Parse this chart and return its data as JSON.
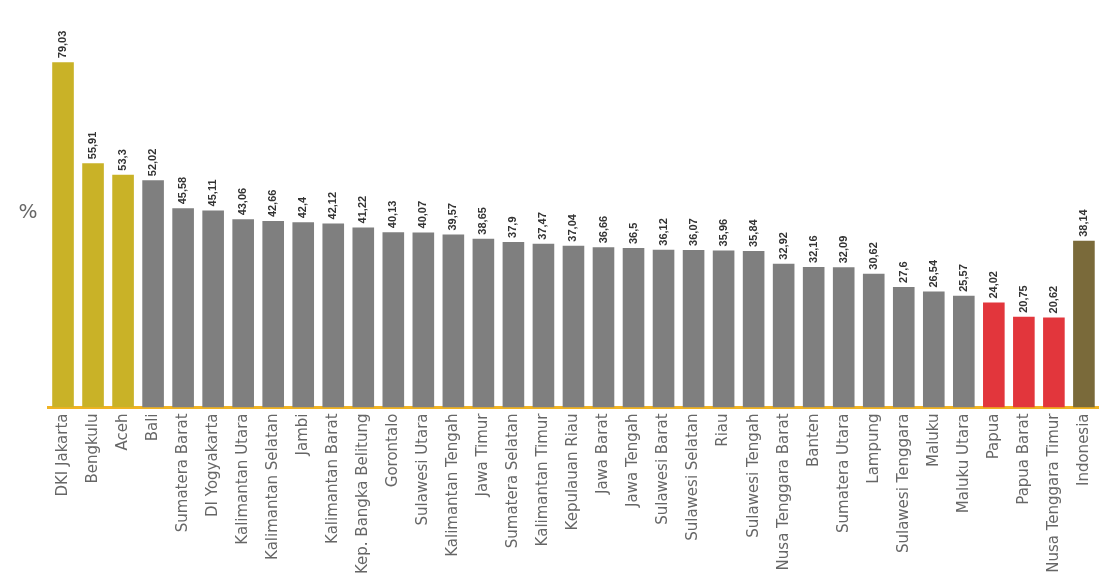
{
  "chart_data": {
    "type": "bar",
    "ylabel": "%",
    "categories": [
      "DKI Jakarta",
      "Bengkulu",
      "Aceh",
      "Bali",
      "Sumatera Barat",
      "DI Yogyakarta",
      "Kalimantan Utara",
      "Kalimantan Selatan",
      "Jambi",
      "Kalimantan Barat",
      "Kep. Bangka Belitung",
      "Gorontalo",
      "Sulawesi Utara",
      "Kalimantan Tengah",
      "Jawa Timur",
      "Sumatera Selatan",
      "Kalimantan Timur",
      "Kepulauan Riau",
      "Jawa Barat",
      "Jawa Tengah",
      "Sulawesi Barat",
      "Sulawesi Selatan",
      "Riau",
      "Sulawesi Tengah",
      "Nusa Tenggara Barat",
      "Banten",
      "Sumatera Utara",
      "Lampung",
      "Sulawesi Tenggara",
      "Maluku",
      "Maluku Utara",
      "Papua",
      "Papua Barat",
      "Nusa Tenggara Timur",
      "Indonesia"
    ],
    "values": [
      79.03,
      55.91,
      53.3,
      52.02,
      45.58,
      45.11,
      43.06,
      42.66,
      42.4,
      42.12,
      41.22,
      40.13,
      40.07,
      39.57,
      38.65,
      37.9,
      37.47,
      37.04,
      36.66,
      36.5,
      36.12,
      36.07,
      35.96,
      35.84,
      32.92,
      32.16,
      32.09,
      30.62,
      27.6,
      26.54,
      25.57,
      24.02,
      20.75,
      20.62,
      38.14
    ],
    "value_labels": [
      "79,03",
      "55,91",
      "53,3",
      "52,02",
      "45,58",
      "45,11",
      "43,06",
      "42,66",
      "42,4",
      "42,12",
      "41,22",
      "40,13",
      "40,07",
      "39,57",
      "38,65",
      "37,9",
      "37,47",
      "37,04",
      "36,66",
      "36,5",
      "36,12",
      "36,07",
      "35,96",
      "35,84",
      "32,92",
      "32,16",
      "32,09",
      "30,62",
      "27,6",
      "26,54",
      "25,57",
      "24,02",
      "20,75",
      "20,62",
      "38,14"
    ],
    "colors": [
      "#c9b227",
      "#c9b227",
      "#c9b227",
      "#7f7f7f",
      "#7f7f7f",
      "#7f7f7f",
      "#7f7f7f",
      "#7f7f7f",
      "#7f7f7f",
      "#7f7f7f",
      "#7f7f7f",
      "#7f7f7f",
      "#7f7f7f",
      "#7f7f7f",
      "#7f7f7f",
      "#7f7f7f",
      "#7f7f7f",
      "#7f7f7f",
      "#7f7f7f",
      "#7f7f7f",
      "#7f7f7f",
      "#7f7f7f",
      "#7f7f7f",
      "#7f7f7f",
      "#7f7f7f",
      "#7f7f7f",
      "#7f7f7f",
      "#7f7f7f",
      "#7f7f7f",
      "#7f7f7f",
      "#7f7f7f",
      "#e2363c",
      "#e2363c",
      "#e2363c",
      "#7a6a3a"
    ],
    "grid": false,
    "legend": false
  }
}
